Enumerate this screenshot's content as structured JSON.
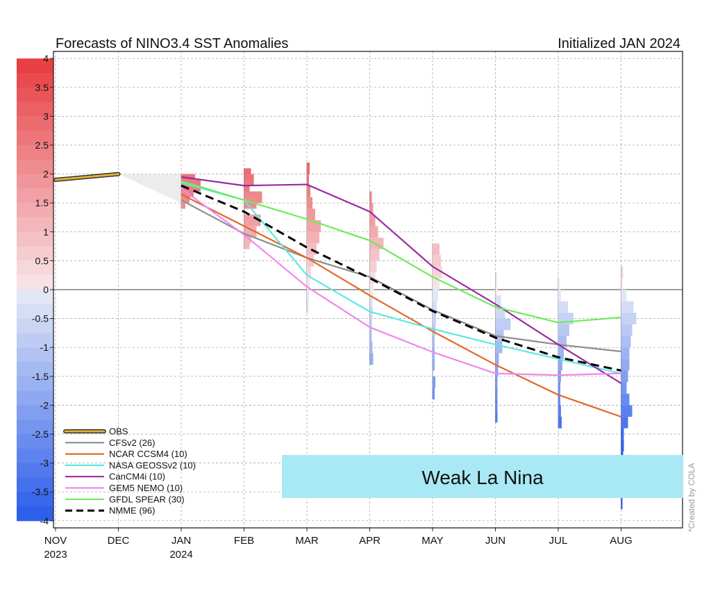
{
  "chart_data": {
    "type": "line",
    "title": "Forecasts of NINO3.4 SST Anomalies",
    "subtitle": "Initialized JAN 2024",
    "xticks": [
      {
        "month": "NOV",
        "year": "2023"
      },
      {
        "month": "DEC",
        "year": ""
      },
      {
        "month": "JAN",
        "year": "2024"
      },
      {
        "month": "FEB",
        "year": ""
      },
      {
        "month": "MAR",
        "year": ""
      },
      {
        "month": "APR",
        "year": ""
      },
      {
        "month": "MAY",
        "year": ""
      },
      {
        "month": "JUN",
        "year": ""
      },
      {
        "month": "JUL",
        "year": ""
      },
      {
        "month": "AUG",
        "year": ""
      }
    ],
    "yticks": [
      "4",
      "3.5",
      "3",
      "2.5",
      "2",
      "1.5",
      "1",
      "0.5",
      "0",
      "-0.5",
      "-1",
      "-1.5",
      "-2",
      "-2.5",
      "-3",
      "-3.5",
      "-4"
    ],
    "ylim": [
      -4,
      4
    ],
    "grid": true,
    "legend_position": "bottom-left",
    "series": [
      {
        "name": "OBS",
        "color": "#e0b13a",
        "style": "obs",
        "x": [
          "NOV",
          "DEC"
        ],
        "values": [
          1.9,
          2.0
        ]
      },
      {
        "name": "CFSv2 (26)",
        "color": "#8c8c8c",
        "style": "solid",
        "x": [
          "JAN",
          "FEB",
          "MAR",
          "APR",
          "MAY",
          "JUN",
          "JUL",
          "AUG"
        ],
        "values": [
          1.55,
          0.97,
          0.55,
          0.22,
          -0.35,
          -0.8,
          -0.95,
          -1.07
        ]
      },
      {
        "name": "NCAR CCSM4 (10)",
        "color": "#e0692a",
        "style": "solid",
        "x": [
          "JAN",
          "FEB",
          "MAR",
          "APR",
          "MAY",
          "JUN",
          "JUL",
          "AUG"
        ],
        "values": [
          1.65,
          1.1,
          0.55,
          -0.1,
          -0.72,
          -1.3,
          -1.82,
          -2.2
        ]
      },
      {
        "name": "NASA GEOSSv2 (10)",
        "color": "#5ee8e0",
        "style": "solid",
        "x": [
          "JAN",
          "FEB",
          "MAR",
          "APR",
          "MAY",
          "JUN",
          "JUL",
          "AUG"
        ],
        "values": [
          1.85,
          1.55,
          0.25,
          -0.38,
          -0.68,
          -0.95,
          -1.2,
          -1.45
        ]
      },
      {
        "name": "CanCM4i (10)",
        "color": "#9a2aa0",
        "style": "solid",
        "x": [
          "JAN",
          "FEB",
          "MAR",
          "APR",
          "MAY",
          "JUN",
          "JUL",
          "AUG"
        ],
        "values": [
          1.95,
          1.8,
          1.82,
          1.35,
          0.4,
          -0.25,
          -0.95,
          -1.62
        ]
      },
      {
        "name": "GEM5 NEMO (10)",
        "color": "#ee88ee",
        "style": "solid",
        "x": [
          "JAN",
          "FEB",
          "MAR",
          "APR",
          "MAY",
          "JUN",
          "JUL",
          "AUG"
        ],
        "values": [
          1.75,
          0.95,
          0.05,
          -0.65,
          -1.08,
          -1.45,
          -1.48,
          -1.45
        ]
      },
      {
        "name": "GFDL SPEAR (30)",
        "color": "#6eea5a",
        "style": "solid",
        "x": [
          "JAN",
          "FEB",
          "MAR",
          "APR",
          "MAY",
          "JUN",
          "JUL",
          "AUG"
        ],
        "values": [
          1.88,
          1.55,
          1.22,
          0.85,
          0.22,
          -0.3,
          -0.57,
          -0.48
        ]
      },
      {
        "name": "NMME (96)",
        "color": "#000000",
        "style": "dashed",
        "x": [
          "JAN",
          "FEB",
          "MAR",
          "APR",
          "MAY",
          "JUN",
          "JUL",
          "AUG"
        ],
        "values": [
          1.8,
          1.35,
          0.73,
          0.2,
          -0.37,
          -0.83,
          -1.17,
          -1.4
        ]
      }
    ],
    "spread_histograms": [
      {
        "month": "JAN",
        "bins": [
          [
            1.9,
            20
          ],
          [
            1.8,
            28
          ],
          [
            1.7,
            18
          ],
          [
            1.6,
            12
          ],
          [
            1.5,
            6
          ]
        ]
      },
      {
        "month": "FEB",
        "bins": [
          [
            2.0,
            10
          ],
          [
            1.9,
            14
          ],
          [
            1.8,
            8
          ],
          [
            1.6,
            26
          ],
          [
            1.5,
            18
          ],
          [
            1.2,
            24
          ],
          [
            1.0,
            18
          ],
          [
            0.9,
            10
          ],
          [
            0.8,
            8
          ]
        ]
      },
      {
        "month": "MAR",
        "bins": [
          [
            2.1,
            4
          ],
          [
            1.9,
            3
          ],
          [
            1.7,
            5
          ],
          [
            1.5,
            8
          ],
          [
            1.3,
            12
          ],
          [
            1.1,
            20
          ],
          [
            0.9,
            18
          ],
          [
            0.7,
            14
          ],
          [
            0.5,
            10
          ],
          [
            0.3,
            6
          ],
          [
            0.1,
            4
          ],
          [
            -0.1,
            3
          ],
          [
            -0.3,
            2
          ]
        ]
      },
      {
        "month": "APR",
        "bins": [
          [
            1.6,
            3
          ],
          [
            1.4,
            5
          ],
          [
            1.2,
            8
          ],
          [
            1.0,
            12
          ],
          [
            0.8,
            20
          ],
          [
            0.6,
            14
          ],
          [
            0.4,
            10
          ],
          [
            0.2,
            8
          ],
          [
            0.0,
            6
          ],
          [
            -0.2,
            4
          ],
          [
            -0.4,
            4
          ],
          [
            -0.6,
            3
          ],
          [
            -0.8,
            3
          ],
          [
            -1.0,
            4
          ],
          [
            -1.2,
            5
          ]
        ]
      },
      {
        "month": "MAY",
        "bins": [
          [
            0.7,
            10
          ],
          [
            0.5,
            12
          ],
          [
            0.3,
            14
          ],
          [
            0.1,
            10
          ],
          [
            -0.1,
            8
          ],
          [
            -0.3,
            6
          ],
          [
            -0.5,
            5
          ],
          [
            -0.7,
            4
          ],
          [
            -0.9,
            3
          ],
          [
            -1.1,
            3
          ],
          [
            -1.3,
            3
          ],
          [
            -1.6,
            4
          ],
          [
            -1.8,
            3
          ]
        ]
      },
      {
        "month": "JUN",
        "bins": [
          [
            0.2,
            2
          ],
          [
            0.0,
            3
          ],
          [
            -0.2,
            8
          ],
          [
            -0.4,
            14
          ],
          [
            -0.6,
            22
          ],
          [
            -0.8,
            12
          ],
          [
            -1.0,
            10
          ],
          [
            -1.2,
            5
          ],
          [
            -1.4,
            4
          ],
          [
            -1.6,
            3
          ],
          [
            -1.8,
            3
          ],
          [
            -2.0,
            3
          ],
          [
            -2.2,
            3
          ]
        ]
      },
      {
        "month": "JUL",
        "bins": [
          [
            0.1,
            2
          ],
          [
            -0.1,
            4
          ],
          [
            -0.3,
            14
          ],
          [
            -0.5,
            22
          ],
          [
            -0.7,
            16
          ],
          [
            -0.9,
            12
          ],
          [
            -1.1,
            8
          ],
          [
            -1.3,
            6
          ],
          [
            -1.5,
            4
          ],
          [
            -1.7,
            3
          ],
          [
            -1.9,
            3
          ],
          [
            -2.1,
            4
          ],
          [
            -2.3,
            5
          ]
        ]
      },
      {
        "month": "AUG",
        "bins": [
          [
            0.3,
            3
          ],
          [
            0.1,
            2
          ],
          [
            -0.1,
            8
          ],
          [
            -0.3,
            18
          ],
          [
            -0.5,
            22
          ],
          [
            -0.7,
            16
          ],
          [
            -0.9,
            14
          ],
          [
            -1.1,
            12
          ],
          [
            -1.3,
            12
          ],
          [
            -1.5,
            10
          ],
          [
            -1.7,
            8
          ],
          [
            -1.9,
            12
          ],
          [
            -2.1,
            16
          ],
          [
            -2.3,
            10
          ],
          [
            -2.5,
            4
          ],
          [
            -2.7,
            4
          ],
          [
            -2.9,
            3
          ],
          [
            -3.1,
            3
          ],
          [
            -3.3,
            3
          ],
          [
            -3.5,
            3
          ],
          [
            -3.7,
            2
          ]
        ]
      }
    ]
  },
  "banner": {
    "text": "Weak La Nina",
    "color": "#a9e9f5"
  },
  "credit": "*Created by COLA"
}
